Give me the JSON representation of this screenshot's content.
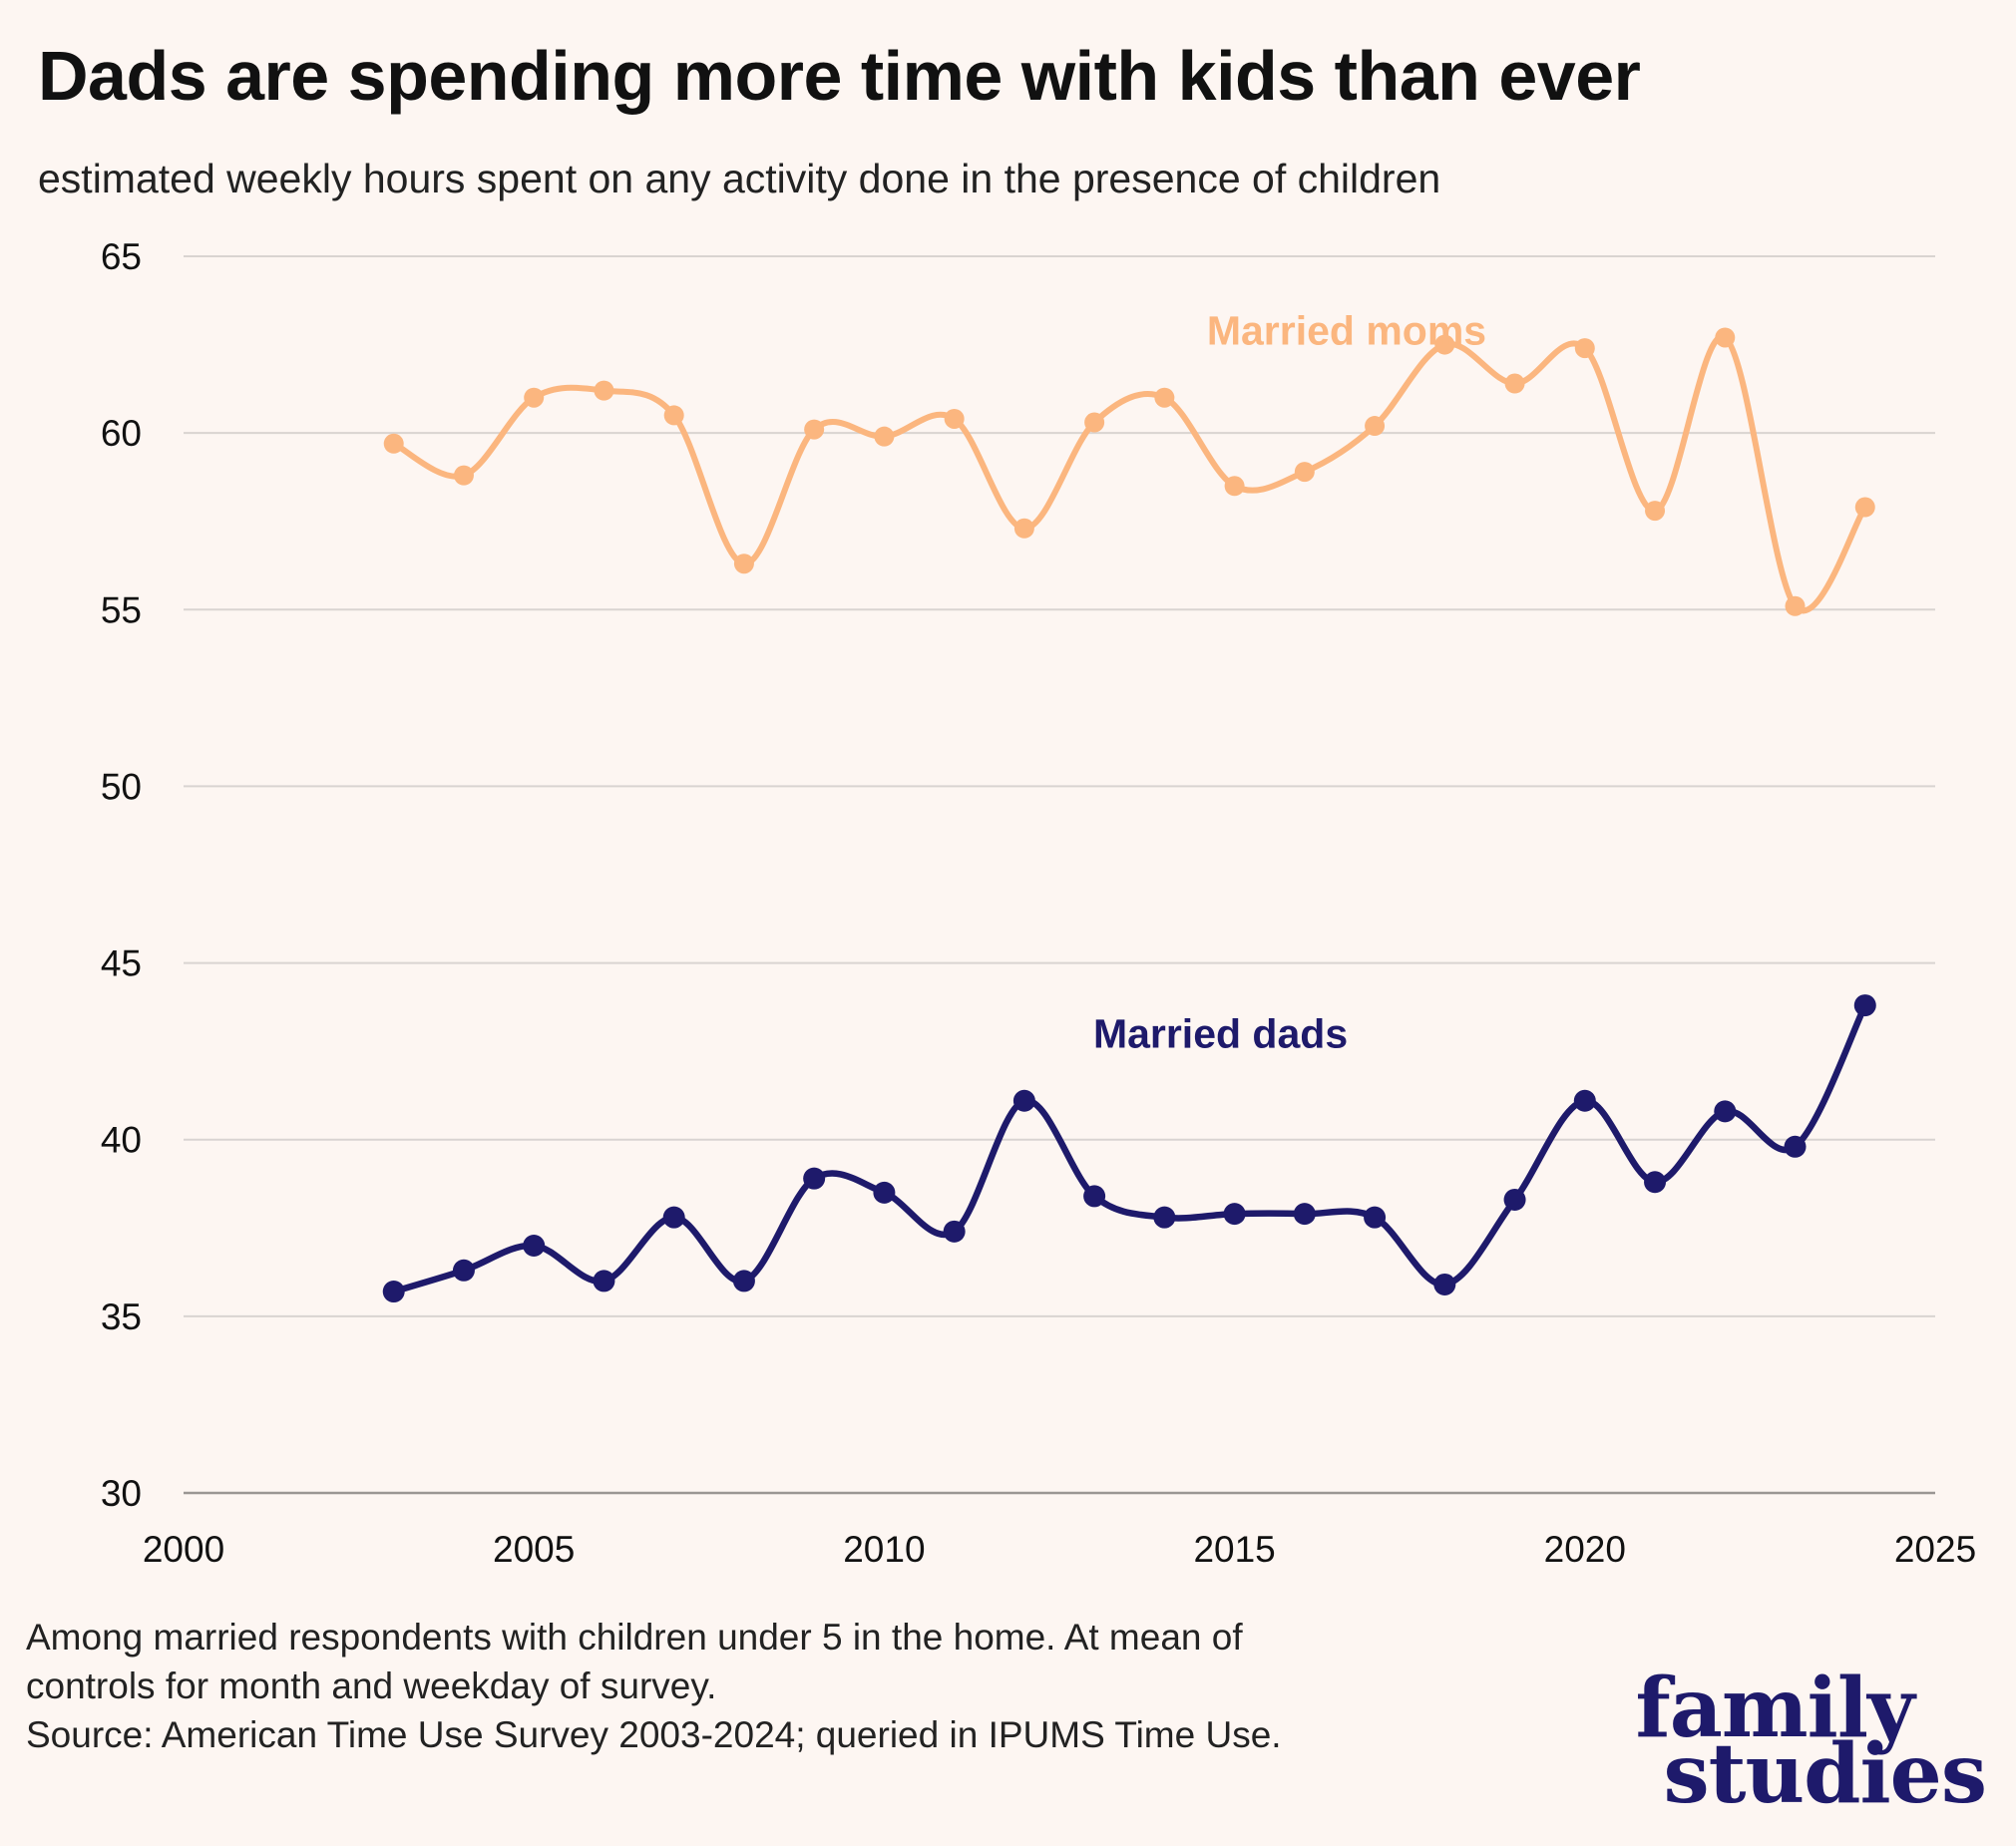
{
  "title": "Dads are spending more time with kids than ever",
  "subtitle": "estimated weekly hours spent on any activity done in the presence of children",
  "footnote": {
    "line1": "Among married respondents with children under 5 in the home. At mean of",
    "line2": "controls for month and weekday of survey.",
    "line3": "Source: American Time Use Survey 2003-2024; queried in IPUMS Time Use."
  },
  "logo": {
    "line1": "family",
    "line2": "studies",
    "color": "#1e1a6b"
  },
  "colors": {
    "background": "#fdf6f2",
    "moms": "#fbb67f",
    "dads": "#1e1a6b",
    "grid": "#d9d4d1",
    "axis": "#9a9693"
  },
  "chart_data": {
    "type": "line",
    "title": "Dads are spending more time with kids than ever",
    "subtitle": "estimated weekly hours spent on any activity done in the presence of children",
    "xlabel": "",
    "ylabel": "",
    "xlim": [
      2000,
      2025
    ],
    "ylim": [
      30,
      65
    ],
    "xticks": [
      2000,
      2005,
      2010,
      2015,
      2020,
      2025
    ],
    "yticks": [
      30,
      35,
      40,
      45,
      50,
      55,
      60,
      65
    ],
    "grid": "horizontal",
    "legend": "inline labels",
    "x": [
      2003,
      2004,
      2005,
      2006,
      2007,
      2008,
      2009,
      2010,
      2011,
      2012,
      2013,
      2014,
      2015,
      2016,
      2017,
      2018,
      2019,
      2020,
      2021,
      2022,
      2023,
      2024
    ],
    "series": [
      {
        "name": "Married moms",
        "color": "#fbb67f",
        "label_at": [
          2016.6,
          62.5
        ],
        "values": [
          59.7,
          58.8,
          61.0,
          61.2,
          60.5,
          56.3,
          60.1,
          59.9,
          60.4,
          57.3,
          60.3,
          61.0,
          58.5,
          58.9,
          60.2,
          62.5,
          61.4,
          62.4,
          57.8,
          62.7,
          55.1,
          57.9
        ]
      },
      {
        "name": "Married dads",
        "color": "#1e1a6b",
        "label_at": [
          2014.8,
          42.6
        ],
        "values": [
          35.7,
          36.3,
          37.0,
          36.0,
          37.8,
          36.0,
          38.9,
          38.5,
          37.4,
          41.1,
          38.4,
          37.8,
          37.9,
          37.9,
          37.8,
          35.9,
          38.3,
          41.1,
          38.8,
          40.8,
          39.8,
          43.8
        ]
      }
    ]
  }
}
